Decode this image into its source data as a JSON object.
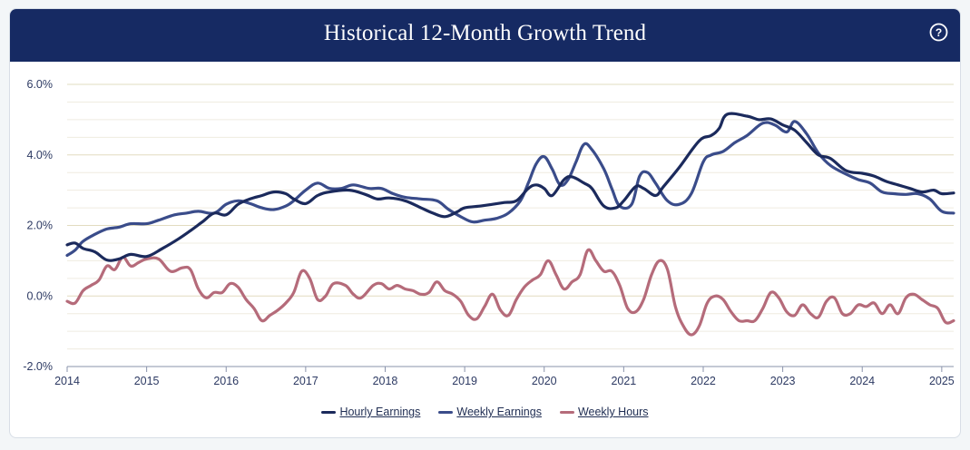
{
  "colors": {
    "header": "#162a63",
    "hourly": "#1b2a5c",
    "weekly_earnings": "#3a4c8a",
    "weekly_hours": "#b56b7a",
    "grid": "#e4e0c8",
    "axis_text": "#2d3a63"
  },
  "icons": {
    "help": "help-circle-icon"
  },
  "chart_data": {
    "type": "line",
    "title": "Historical 12-Month Growth Trend",
    "xlabel": "",
    "ylabel": "",
    "xlim": [
      2014.0,
      2025.15
    ],
    "ylim": [
      -2.0,
      6.0
    ],
    "y_ticks": [
      "6.0%",
      "4.0%",
      "2.0%",
      "0.0%",
      "-2.0%"
    ],
    "y_tick_values": [
      6.0,
      4.0,
      2.0,
      0.0,
      -2.0
    ],
    "x_ticks": [
      "2014",
      "2015",
      "2016",
      "2017",
      "2018",
      "2019",
      "2020",
      "2021",
      "2022",
      "2023",
      "2024",
      "2025"
    ],
    "x_tick_values": [
      2014,
      2015,
      2016,
      2017,
      2018,
      2019,
      2020,
      2021,
      2022,
      2023,
      2024,
      2025
    ],
    "legend_position": "bottom-center",
    "series": [
      {
        "name": "Hourly Earnings",
        "x": [
          2014.0,
          2014.1,
          2014.2,
          2014.35,
          2014.5,
          2014.65,
          2014.8,
          2015.0,
          2015.2,
          2015.4,
          2015.55,
          2015.7,
          2015.85,
          2016.0,
          2016.15,
          2016.3,
          2016.45,
          2016.6,
          2016.75,
          2016.85,
          2017.0,
          2017.15,
          2017.3,
          2017.55,
          2017.75,
          2017.9,
          2018.05,
          2018.25,
          2018.45,
          2018.6,
          2018.75,
          2018.9,
          2019.0,
          2019.2,
          2019.35,
          2019.5,
          2019.65,
          2019.8,
          2019.9,
          2020.0,
          2020.1,
          2020.25,
          2020.35,
          2020.5,
          2020.6,
          2020.75,
          2020.9,
          2021.0,
          2021.15,
          2021.25,
          2021.4,
          2021.5,
          2021.7,
          2021.95,
          2022.1,
          2022.2,
          2022.3,
          2022.55,
          2022.7,
          2022.85,
          2023.0,
          2023.15,
          2023.3,
          2023.45,
          2023.6,
          2023.8,
          2024.0,
          2024.15,
          2024.3,
          2024.45,
          2024.6,
          2024.75,
          2024.9,
          2025.0,
          2025.15
        ],
        "values": [
          1.45,
          1.5,
          1.35,
          1.25,
          1.02,
          1.05,
          1.18,
          1.12,
          1.35,
          1.62,
          1.85,
          2.1,
          2.35,
          2.3,
          2.6,
          2.75,
          2.85,
          2.95,
          2.9,
          2.75,
          2.62,
          2.85,
          2.95,
          3.0,
          2.88,
          2.75,
          2.78,
          2.7,
          2.5,
          2.35,
          2.25,
          2.38,
          2.5,
          2.55,
          2.6,
          2.65,
          2.7,
          3.05,
          3.15,
          3.05,
          2.85,
          3.3,
          3.38,
          3.2,
          3.05,
          2.55,
          2.5,
          2.7,
          3.1,
          3.05,
          2.85,
          3.1,
          3.65,
          4.4,
          4.55,
          4.75,
          5.15,
          5.1,
          5.0,
          5.02,
          4.85,
          4.7,
          4.35,
          4.0,
          3.9,
          3.55,
          3.48,
          3.4,
          3.25,
          3.15,
          3.05,
          2.95,
          3.0,
          2.9,
          2.92
        ]
      },
      {
        "name": "Weekly Earnings",
        "x": [
          2014.0,
          2014.1,
          2014.2,
          2014.35,
          2014.5,
          2014.65,
          2014.8,
          2015.0,
          2015.15,
          2015.35,
          2015.5,
          2015.65,
          2015.85,
          2016.0,
          2016.15,
          2016.3,
          2016.45,
          2016.6,
          2016.75,
          2016.85,
          2017.0,
          2017.15,
          2017.3,
          2017.45,
          2017.6,
          2017.8,
          2017.95,
          2018.1,
          2018.25,
          2018.45,
          2018.65,
          2018.8,
          2018.95,
          2019.1,
          2019.25,
          2019.4,
          2019.55,
          2019.7,
          2019.8,
          2019.9,
          2020.0,
          2020.1,
          2020.2,
          2020.3,
          2020.4,
          2020.5,
          2020.6,
          2020.75,
          2020.85,
          2020.95,
          2021.1,
          2021.2,
          2021.3,
          2021.4,
          2021.55,
          2021.7,
          2021.85,
          2022.0,
          2022.1,
          2022.25,
          2022.4,
          2022.55,
          2022.75,
          2022.9,
          2023.05,
          2023.15,
          2023.3,
          2023.45,
          2023.6,
          2023.8,
          2023.95,
          2024.1,
          2024.25,
          2024.4,
          2024.55,
          2024.7,
          2024.85,
          2025.0,
          2025.15
        ],
        "values": [
          1.15,
          1.3,
          1.55,
          1.75,
          1.9,
          1.95,
          2.05,
          2.05,
          2.15,
          2.3,
          2.35,
          2.4,
          2.35,
          2.6,
          2.7,
          2.62,
          2.5,
          2.45,
          2.55,
          2.7,
          3.0,
          3.2,
          3.05,
          3.05,
          3.15,
          3.05,
          3.05,
          2.9,
          2.8,
          2.75,
          2.7,
          2.45,
          2.25,
          2.1,
          2.15,
          2.2,
          2.35,
          2.7,
          3.2,
          3.75,
          3.95,
          3.6,
          3.15,
          3.3,
          3.8,
          4.3,
          4.15,
          3.6,
          3.05,
          2.55,
          2.6,
          3.4,
          3.5,
          3.2,
          2.7,
          2.6,
          2.9,
          3.8,
          4.0,
          4.1,
          4.35,
          4.55,
          4.9,
          4.85,
          4.65,
          4.95,
          4.6,
          4.05,
          3.7,
          3.45,
          3.3,
          3.2,
          2.95,
          2.9,
          2.88,
          2.9,
          2.75,
          2.4,
          2.35
        ]
      },
      {
        "name": "Weekly Hours",
        "x": [
          2014.0,
          2014.1,
          2014.2,
          2014.3,
          2014.4,
          2014.5,
          2014.6,
          2014.7,
          2014.8,
          2014.9,
          2015.0,
          2015.15,
          2015.3,
          2015.45,
          2015.55,
          2015.65,
          2015.75,
          2015.85,
          2015.95,
          2016.05,
          2016.15,
          2016.25,
          2016.35,
          2016.45,
          2016.55,
          2016.65,
          2016.75,
          2016.85,
          2016.95,
          2017.05,
          2017.15,
          2017.25,
          2017.35,
          2017.5,
          2017.6,
          2017.7,
          2017.85,
          2017.95,
          2018.05,
          2018.15,
          2018.25,
          2018.35,
          2018.45,
          2018.55,
          2018.65,
          2018.75,
          2018.85,
          2018.95,
          2019.05,
          2019.15,
          2019.25,
          2019.35,
          2019.45,
          2019.55,
          2019.65,
          2019.75,
          2019.85,
          2019.95,
          2020.05,
          2020.15,
          2020.25,
          2020.35,
          2020.45,
          2020.55,
          2020.65,
          2020.75,
          2020.85,
          2020.95,
          2021.05,
          2021.15,
          2021.25,
          2021.35,
          2021.45,
          2021.55,
          2021.65,
          2021.75,
          2021.85,
          2021.95,
          2022.05,
          2022.15,
          2022.25,
          2022.35,
          2022.45,
          2022.55,
          2022.65,
          2022.75,
          2022.85,
          2022.95,
          2023.05,
          2023.15,
          2023.25,
          2023.35,
          2023.45,
          2023.55,
          2023.65,
          2023.75,
          2023.85,
          2023.95,
          2024.05,
          2024.15,
          2024.25,
          2024.35,
          2024.45,
          2024.55,
          2024.65,
          2024.75,
          2024.85,
          2024.95,
          2025.05,
          2025.15
        ],
        "values": [
          -0.15,
          -0.2,
          0.15,
          0.3,
          0.45,
          0.85,
          0.75,
          1.1,
          0.85,
          0.95,
          1.05,
          1.05,
          0.7,
          0.8,
          0.75,
          0.2,
          -0.05,
          0.1,
          0.1,
          0.35,
          0.25,
          -0.1,
          -0.35,
          -0.7,
          -0.55,
          -0.4,
          -0.2,
          0.1,
          0.7,
          0.5,
          -0.1,
          0.0,
          0.35,
          0.3,
          0.05,
          -0.05,
          0.3,
          0.35,
          0.2,
          0.3,
          0.2,
          0.15,
          0.05,
          0.1,
          0.4,
          0.15,
          0.05,
          -0.15,
          -0.55,
          -0.65,
          -0.3,
          0.05,
          -0.4,
          -0.55,
          -0.1,
          0.25,
          0.45,
          0.6,
          1.0,
          0.6,
          0.2,
          0.4,
          0.6,
          1.3,
          1.0,
          0.7,
          0.7,
          0.3,
          -0.35,
          -0.45,
          -0.1,
          0.6,
          1.0,
          0.75,
          -0.3,
          -0.85,
          -1.1,
          -0.85,
          -0.2,
          0.0,
          -0.1,
          -0.45,
          -0.7,
          -0.7,
          -0.7,
          -0.35,
          0.1,
          -0.05,
          -0.45,
          -0.55,
          -0.25,
          -0.5,
          -0.6,
          -0.15,
          -0.05,
          -0.5,
          -0.5,
          -0.25,
          -0.3,
          -0.2,
          -0.5,
          -0.25,
          -0.5,
          -0.05,
          0.05,
          -0.1,
          -0.25,
          -0.35,
          -0.75,
          -0.7
        ]
      }
    ]
  }
}
